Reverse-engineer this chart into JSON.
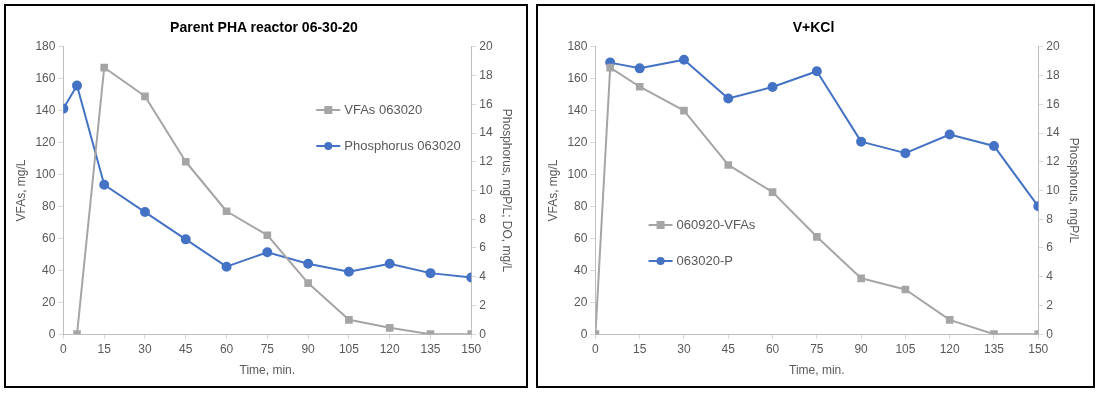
{
  "chart_data": [
    {
      "type": "line",
      "title": "Parent PHA reactor 06-30-20",
      "xlabel": "Time, min.",
      "ylabel": "VFAs, mg/L",
      "y2label": "Phosphorus, mgP/L; DO, mg/L",
      "xlim": [
        0,
        150
      ],
      "xticks": [
        0,
        15,
        30,
        45,
        60,
        75,
        90,
        105,
        120,
        135,
        150
      ],
      "ylim": [
        0,
        180
      ],
      "yticks": [
        0,
        20,
        40,
        60,
        80,
        100,
        120,
        140,
        160,
        180
      ],
      "y2lim": [
        0,
        20
      ],
      "y2ticks": [
        0,
        2,
        4,
        6,
        8,
        10,
        12,
        14,
        16,
        18,
        20
      ],
      "grid": false,
      "legend": "right",
      "series": [
        {
          "name": "VFAs 063020",
          "color": "#a5a5a5",
          "marker": "square",
          "x": [
            5,
            15,
            30,
            45,
            60,
            75,
            90,
            105,
            120,
            135,
            150
          ],
          "values": [
            0,
            167,
            149,
            108,
            77,
            62,
            32,
            9,
            4,
            0,
            0
          ]
        },
        {
          "name": "Phosphorus 063020",
          "color": "#4472c4",
          "marker": "circle",
          "axis": "y2",
          "x": [
            0,
            5,
            15,
            30,
            45,
            60,
            75,
            90,
            105,
            120,
            135,
            150
          ],
          "values": [
            15.7,
            17.3,
            10.4,
            8.5,
            6.6,
            4.7,
            5.7,
            4.9,
            4.35,
            4.9,
            4.25,
            3.95
          ]
        }
      ]
    },
    {
      "type": "line",
      "title": "V+KCl",
      "xlabel": "Time, min.",
      "ylabel": "VFAs, mg/L",
      "y2label": "Phosphorus, mgP/L",
      "xlim": [
        0,
        150
      ],
      "xticks": [
        0,
        15,
        30,
        45,
        60,
        75,
        90,
        105,
        120,
        135,
        150
      ],
      "ylim": [
        0,
        180
      ],
      "yticks": [
        0,
        20,
        40,
        60,
        80,
        100,
        120,
        140,
        160,
        180
      ],
      "y2lim": [
        0,
        20
      ],
      "y2ticks": [
        0,
        2,
        4,
        6,
        8,
        10,
        12,
        14,
        16,
        18,
        20
      ],
      "grid": false,
      "legend": "left",
      "series": [
        {
          "name": "060920-VFAs",
          "color": "#a5a5a5",
          "marker": "square",
          "x": [
            0,
            5,
            15,
            30,
            45,
            60,
            75,
            90,
            105,
            120,
            135,
            150
          ],
          "values": [
            0,
            167,
            155,
            140,
            106,
            89,
            61,
            35,
            28,
            9,
            0,
            0
          ]
        },
        {
          "name": "063020-P",
          "color": "#4472c4",
          "marker": "circle",
          "axis": "y2",
          "x": [
            5,
            15,
            30,
            45,
            60,
            75,
            90,
            105,
            120,
            135,
            150
          ],
          "values": [
            18.9,
            18.5,
            19.1,
            16.4,
            17.2,
            18.3,
            13.4,
            12.6,
            13.9,
            13.1,
            8.9
          ]
        }
      ]
    }
  ]
}
